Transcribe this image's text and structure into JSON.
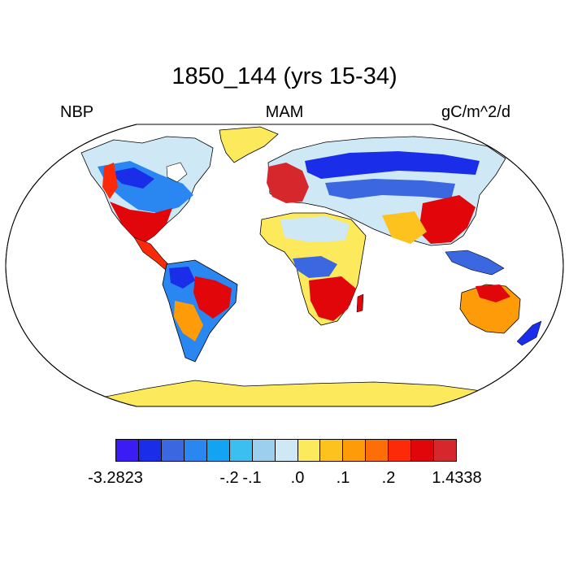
{
  "title": "1850_144 (yrs 15-34)",
  "subtitles": {
    "left": "NBP",
    "center": "MAM",
    "right": "gC/m^2/d"
  },
  "colorbar": {
    "colors": [
      "#3b1cf5",
      "#1a2de8",
      "#3b68e0",
      "#2a86f0",
      "#12a4f2",
      "#3bbef0",
      "#9ccfee",
      "#cfe8f6",
      "#fde95c",
      "#fdc21e",
      "#fd9c08",
      "#fd6e08",
      "#fd2a0a",
      "#e1060a",
      "#d6282c"
    ],
    "labels": [
      {
        "text": "-3.2823",
        "boundary": 0
      },
      {
        "text": "-.2",
        "boundary": 5
      },
      {
        "text": "-.1",
        "boundary": 6
      },
      {
        "text": ".0",
        "boundary": 8
      },
      {
        "text": ".1",
        "boundary": 10
      },
      {
        "text": ".2",
        "boundary": 12
      },
      {
        "text": "1.4338",
        "boundary": 15
      }
    ]
  }
}
